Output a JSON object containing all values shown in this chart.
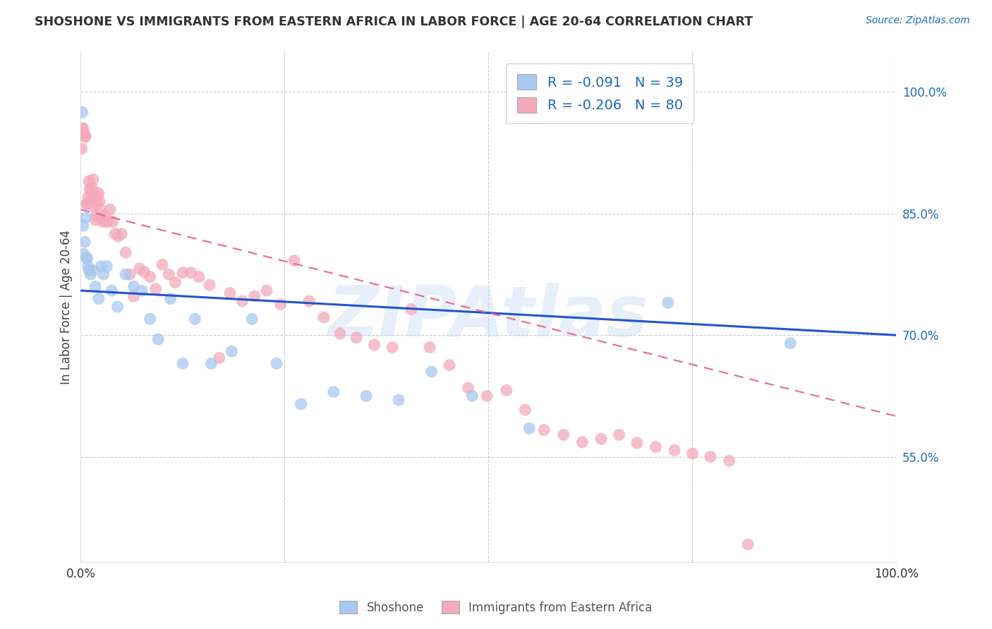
{
  "title": "SHOSHONE VS IMMIGRANTS FROM EASTERN AFRICA IN LABOR FORCE | AGE 20-64 CORRELATION CHART",
  "source": "Source: ZipAtlas.com",
  "ylabel": "In Labor Force | Age 20-64",
  "xlim": [
    0.0,
    1.0
  ],
  "ylim": [
    0.42,
    1.05
  ],
  "y_ticks": [
    0.55,
    0.7,
    0.85,
    1.0
  ],
  "y_tick_labels": [
    "55.0%",
    "70.0%",
    "85.0%",
    "100.0%"
  ],
  "watermark": "ZIPAtlas",
  "shoshone_color": "#A8C8F0",
  "immigrants_color": "#F4AABB",
  "shoshone_line_color": "#2255CC",
  "immigrants_line_color": "#E87090",
  "legend_r1": "-0.091",
  "legend_n1": "39",
  "legend_r2": "-0.206",
  "legend_n2": "80",
  "shoshone_label": "Shoshone",
  "immigrants_label": "Immigrants from Eastern Africa",
  "shoshone_x": [
    0.002,
    0.003,
    0.004,
    0.005,
    0.006,
    0.007,
    0.008,
    0.009,
    0.01,
    0.012,
    0.015,
    0.018,
    0.022,
    0.025,
    0.028,
    0.032,
    0.038,
    0.045,
    0.055,
    0.065,
    0.075,
    0.085,
    0.095,
    0.11,
    0.125,
    0.14,
    0.16,
    0.185,
    0.21,
    0.24,
    0.27,
    0.31,
    0.35,
    0.39,
    0.43,
    0.48,
    0.55,
    0.72,
    0.87
  ],
  "shoshone_y": [
    0.975,
    0.835,
    0.8,
    0.815,
    0.845,
    0.795,
    0.795,
    0.785,
    0.78,
    0.775,
    0.78,
    0.76,
    0.745,
    0.785,
    0.775,
    0.785,
    0.755,
    0.735,
    0.775,
    0.76,
    0.755,
    0.72,
    0.695,
    0.745,
    0.665,
    0.72,
    0.665,
    0.68,
    0.72,
    0.665,
    0.615,
    0.63,
    0.625,
    0.62,
    0.655,
    0.625,
    0.585,
    0.74,
    0.69
  ],
  "immigrants_x": [
    0.001,
    0.002,
    0.003,
    0.004,
    0.005,
    0.006,
    0.007,
    0.008,
    0.009,
    0.01,
    0.011,
    0.012,
    0.013,
    0.014,
    0.015,
    0.016,
    0.017,
    0.018,
    0.019,
    0.02,
    0.021,
    0.022,
    0.023,
    0.024,
    0.025,
    0.027,
    0.029,
    0.031,
    0.033,
    0.036,
    0.039,
    0.042,
    0.046,
    0.05,
    0.055,
    0.06,
    0.065,
    0.072,
    0.078,
    0.085,
    0.092,
    0.1,
    0.108,
    0.116,
    0.125,
    0.135,
    0.145,
    0.158,
    0.17,
    0.183,
    0.198,
    0.213,
    0.228,
    0.245,
    0.262,
    0.28,
    0.298,
    0.318,
    0.338,
    0.36,
    0.382,
    0.405,
    0.428,
    0.452,
    0.475,
    0.498,
    0.522,
    0.545,
    0.568,
    0.592,
    0.615,
    0.638,
    0.66,
    0.682,
    0.705,
    0.728,
    0.75,
    0.772,
    0.795,
    0.818
  ],
  "immigrants_y": [
    0.93,
    0.955,
    0.955,
    0.95,
    0.945,
    0.945,
    0.862,
    0.862,
    0.87,
    0.89,
    0.88,
    0.88,
    0.87,
    0.882,
    0.892,
    0.872,
    0.858,
    0.842,
    0.847,
    0.862,
    0.872,
    0.875,
    0.865,
    0.855,
    0.845,
    0.84,
    0.848,
    0.84,
    0.84,
    0.855,
    0.84,
    0.825,
    0.822,
    0.825,
    0.802,
    0.775,
    0.748,
    0.782,
    0.778,
    0.772,
    0.757,
    0.787,
    0.775,
    0.765,
    0.777,
    0.777,
    0.772,
    0.762,
    0.672,
    0.752,
    0.742,
    0.748,
    0.755,
    0.738,
    0.792,
    0.742,
    0.722,
    0.702,
    0.697,
    0.688,
    0.685,
    0.732,
    0.685,
    0.663,
    0.635,
    0.625,
    0.632,
    0.608,
    0.583,
    0.577,
    0.568,
    0.572,
    0.577,
    0.567,
    0.562,
    0.558,
    0.554,
    0.55,
    0.545,
    0.442
  ],
  "shoshone_line_x0": 0.0,
  "shoshone_line_y0": 0.755,
  "shoshone_line_x1": 1.0,
  "shoshone_line_y1": 0.7,
  "immigrants_line_x0": 0.0,
  "immigrants_line_y0": 0.855,
  "immigrants_line_x1": 1.0,
  "immigrants_line_y1": 0.6
}
